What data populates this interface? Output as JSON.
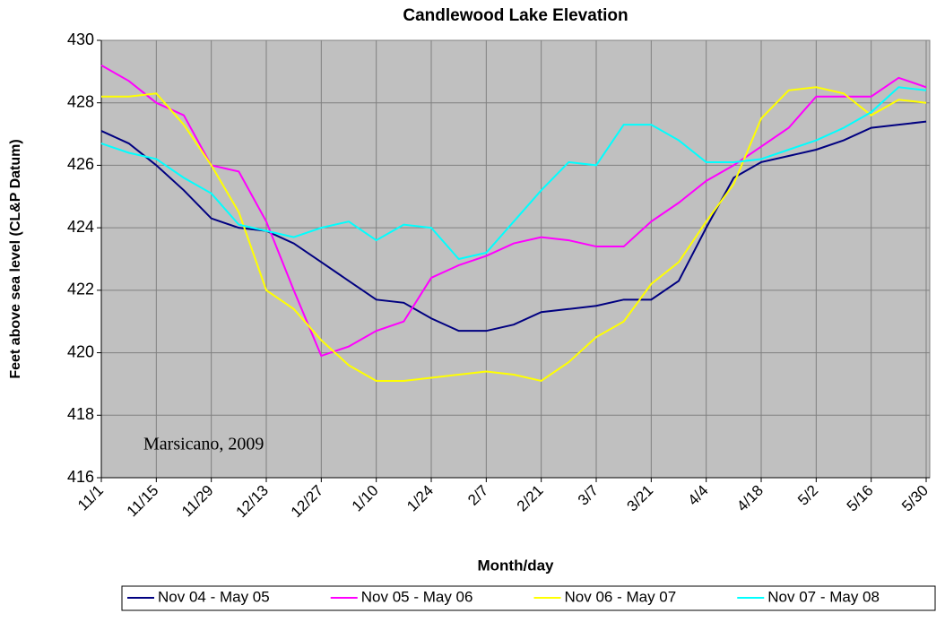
{
  "chart_data": {
    "type": "line",
    "title": "Candlewood Lake Elevation",
    "xlabel": "Month/day",
    "ylabel": "Feet above sea level (CL&P Datum)",
    "annotation": "Marsicano, 2009",
    "categories": [
      "11/1",
      null,
      "11/15",
      null,
      "11/29",
      null,
      "12/13",
      null,
      "12/27",
      null,
      "1/10",
      null,
      "1/24",
      null,
      "2/7",
      null,
      "2/21",
      null,
      "3/7",
      null,
      "3/21",
      null,
      "4/4",
      null,
      "4/18",
      null,
      "5/2",
      null,
      "5/16",
      null,
      "5/30"
    ],
    "series": [
      {
        "name": "Nov 04 - May 05",
        "color": "#000080",
        "values": [
          427.1,
          426.7,
          426.0,
          425.2,
          424.3,
          424.0,
          423.9,
          423.5,
          422.9,
          422.3,
          421.7,
          421.6,
          421.1,
          420.7,
          420.7,
          420.9,
          421.3,
          421.4,
          421.5,
          421.7,
          421.7,
          422.3,
          424.0,
          425.6,
          426.1,
          426.3,
          426.5,
          426.8,
          427.2,
          427.3,
          427.4
        ]
      },
      {
        "name": "Nov 05 - May 06",
        "color": "#ff00ff",
        "values": [
          429.2,
          428.7,
          428.0,
          427.6,
          426.0,
          425.8,
          424.2,
          422.0,
          419.9,
          420.2,
          420.7,
          421.0,
          422.4,
          422.8,
          423.1,
          423.5,
          423.7,
          423.6,
          423.4,
          423.4,
          424.2,
          424.8,
          425.5,
          426.0,
          426.6,
          427.2,
          428.2,
          428.2,
          428.2,
          428.8,
          428.5
        ]
      },
      {
        "name": "Nov 06 - May 07",
        "color": "#ffff00",
        "values": [
          428.2,
          428.2,
          428.3,
          427.3,
          426.0,
          424.5,
          422.0,
          421.4,
          420.4,
          419.6,
          419.1,
          419.1,
          419.2,
          419.3,
          419.4,
          419.3,
          419.1,
          419.7,
          420.5,
          421.0,
          422.2,
          422.9,
          424.2,
          425.4,
          427.5,
          428.4,
          428.5,
          428.3,
          427.6,
          428.1,
          428.0
        ]
      },
      {
        "name": "Nov 07 - May 08",
        "color": "#00ffff",
        "values": [
          426.7,
          426.4,
          426.2,
          425.6,
          425.1,
          424.1,
          423.9,
          423.7,
          424.0,
          424.2,
          423.6,
          424.1,
          424.0,
          423.0,
          423.2,
          424.2,
          425.2,
          426.1,
          426.0,
          427.3,
          427.3,
          426.8,
          426.1,
          426.1,
          426.2,
          426.5,
          426.8,
          427.2,
          427.7,
          428.5,
          428.4
        ]
      }
    ],
    "ylim": [
      416,
      430
    ],
    "yticks": [
      416,
      418,
      420,
      422,
      424,
      426,
      428,
      430
    ],
    "grid": true,
    "legend": "bottom"
  }
}
